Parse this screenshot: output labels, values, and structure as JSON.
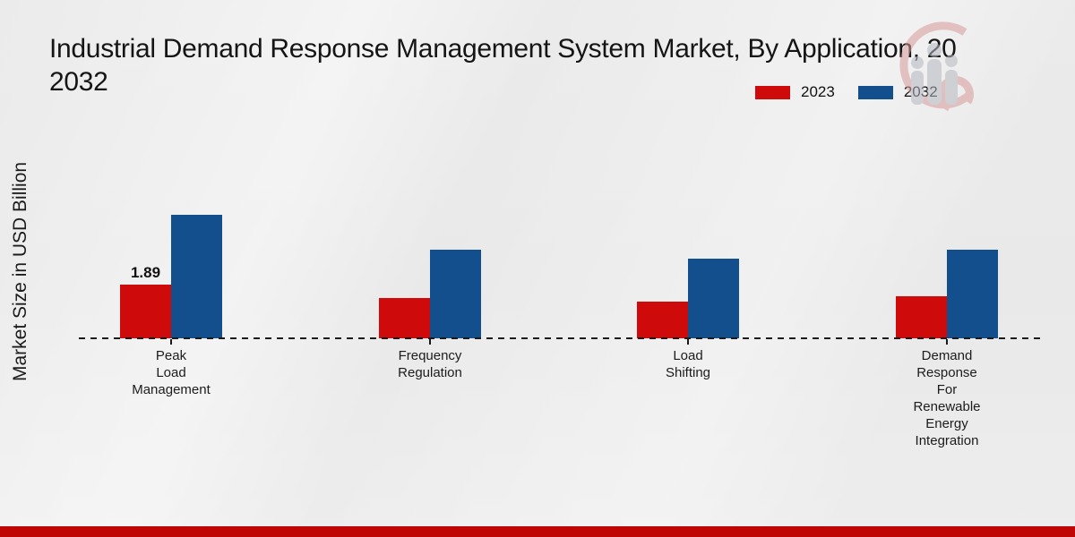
{
  "title": {
    "line1": "Industrial Demand Response Management System Market, By Application, 20",
    "line2": "2032"
  },
  "y_axis_label": "Market Size in USD Billion",
  "legend": [
    {
      "label": "2023",
      "color": "#cf0a0a"
    },
    {
      "label": "2032",
      "color": "#134f8d"
    }
  ],
  "watermark_icon": "market-research-future-logo",
  "footer": {
    "stripe_color": "#c00505"
  },
  "chart_data": {
    "type": "bar",
    "title": "Industrial Demand Response Management System Market, By Application, 20 2032",
    "ylabel": "Market Size in USD Billion",
    "xlabel": "",
    "grid": false,
    "legend_position": "top-right",
    "baseline_style": "dashed",
    "ylim": [
      0,
      5
    ],
    "categories": [
      "Peak Load Management",
      "Frequency Regulation",
      "Load Shifting",
      "Demand Response For Renewable Energy Integration"
    ],
    "category_tick_labels": [
      "Peak\nLoad\nManagement",
      "Frequency\nRegulation",
      "Load\nShifting",
      "Demand\nResponse\nFor\nRenewable\nEnergy\nIntegration"
    ],
    "series": [
      {
        "name": "2023",
        "color": "#cf0a0a",
        "values": [
          1.89,
          1.42,
          1.27,
          1.47
        ]
      },
      {
        "name": "2032",
        "color": "#134f8d",
        "values": [
          4.31,
          3.09,
          2.79,
          3.08
        ]
      }
    ],
    "data_labels": [
      {
        "series_index": 0,
        "category_index": 0,
        "text": "1.89"
      }
    ]
  }
}
